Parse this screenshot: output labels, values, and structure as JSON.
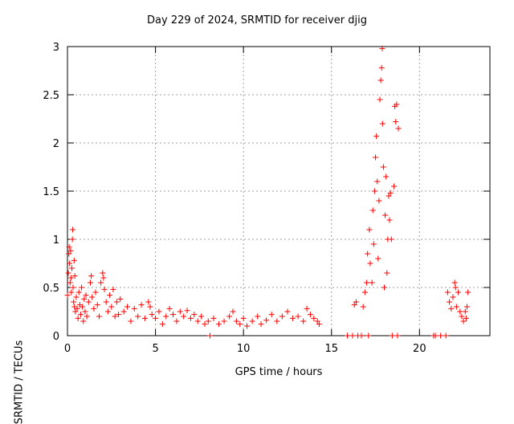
{
  "chart_data": {
    "type": "scatter",
    "title": "Day 229 of 2024, SRMTID for receiver djig",
    "xlabel": "GPS time / hours",
    "ylabel": "SRMTID / TECUs",
    "xlim": [
      0,
      24
    ],
    "ylim": [
      0,
      3
    ],
    "xticks": [
      {
        "value": 0,
        "label": "0"
      },
      {
        "value": 5,
        "label": "5"
      },
      {
        "value": 10,
        "label": "10"
      },
      {
        "value": 15,
        "label": "15"
      },
      {
        "value": 20,
        "label": "20"
      }
    ],
    "yticks": [
      {
        "value": 0,
        "label": "0"
      },
      {
        "value": 0.5,
        "label": "0.5"
      },
      {
        "value": 1,
        "label": "1"
      },
      {
        "value": 1.5,
        "label": "1.5"
      },
      {
        "value": 2,
        "label": "2"
      },
      {
        "value": 2.5,
        "label": "2.5"
      },
      {
        "value": 3,
        "label": "3"
      }
    ],
    "grid": true,
    "marker": "+",
    "color": "#ff0000",
    "series": [
      {
        "name": "SRMTID",
        "points": [
          [
            0.0,
            0.42
          ],
          [
            0.05,
            0.65
          ],
          [
            0.08,
            0.85
          ],
          [
            0.1,
            0.92
          ],
          [
            0.12,
            0.75
          ],
          [
            0.15,
            0.55
          ],
          [
            0.18,
            0.88
          ],
          [
            0.2,
            0.6
          ],
          [
            0.22,
            0.45
          ],
          [
            0.25,
            0.7
          ],
          [
            0.28,
            1.0
          ],
          [
            0.3,
            1.1
          ],
          [
            0.32,
            0.5
          ],
          [
            0.35,
            0.35
          ],
          [
            0.38,
            0.78
          ],
          [
            0.4,
            0.3
          ],
          [
            0.42,
            0.62
          ],
          [
            0.45,
            0.25
          ],
          [
            0.5,
            0.4
          ],
          [
            0.55,
            0.28
          ],
          [
            0.6,
            0.18
          ],
          [
            0.65,
            0.45
          ],
          [
            0.7,
            0.32
          ],
          [
            0.75,
            0.22
          ],
          [
            0.8,
            0.5
          ],
          [
            0.85,
            0.3
          ],
          [
            0.9,
            0.15
          ],
          [
            0.95,
            0.38
          ],
          [
            1.0,
            0.25
          ],
          [
            1.05,
            0.42
          ],
          [
            1.1,
            0.2
          ],
          [
            1.2,
            0.35
          ],
          [
            1.3,
            0.55
          ],
          [
            1.35,
            0.62
          ],
          [
            1.4,
            0.4
          ],
          [
            1.5,
            0.28
          ],
          [
            1.6,
            0.45
          ],
          [
            1.7,
            0.32
          ],
          [
            1.8,
            0.2
          ],
          [
            1.9,
            0.55
          ],
          [
            2.0,
            0.65
          ],
          [
            2.05,
            0.6
          ],
          [
            2.1,
            0.48
          ],
          [
            2.2,
            0.35
          ],
          [
            2.3,
            0.25
          ],
          [
            2.4,
            0.42
          ],
          [
            2.5,
            0.3
          ],
          [
            2.6,
            0.48
          ],
          [
            2.7,
            0.2
          ],
          [
            2.8,
            0.35
          ],
          [
            2.9,
            0.22
          ],
          [
            3.0,
            0.38
          ],
          [
            3.2,
            0.25
          ],
          [
            3.4,
            0.3
          ],
          [
            3.6,
            0.15
          ],
          [
            3.8,
            0.28
          ],
          [
            4.0,
            0.2
          ],
          [
            4.2,
            0.32
          ],
          [
            4.4,
            0.18
          ],
          [
            4.6,
            0.35
          ],
          [
            4.7,
            0.3
          ],
          [
            4.8,
            0.22
          ],
          [
            5.0,
            0.18
          ],
          [
            5.2,
            0.25
          ],
          [
            5.4,
            0.12
          ],
          [
            5.6,
            0.2
          ],
          [
            5.8,
            0.28
          ],
          [
            6.0,
            0.22
          ],
          [
            6.2,
            0.15
          ],
          [
            6.4,
            0.25
          ],
          [
            6.6,
            0.2
          ],
          [
            6.8,
            0.26
          ],
          [
            7.0,
            0.18
          ],
          [
            7.2,
            0.22
          ],
          [
            7.4,
            0.15
          ],
          [
            7.6,
            0.2
          ],
          [
            7.8,
            0.12
          ],
          [
            8.0,
            0.15
          ],
          [
            8.1,
            0.0
          ],
          [
            8.3,
            0.18
          ],
          [
            8.6,
            0.12
          ],
          [
            8.9,
            0.15
          ],
          [
            9.2,
            0.2
          ],
          [
            9.4,
            0.25
          ],
          [
            9.6,
            0.15
          ],
          [
            9.8,
            0.12
          ],
          [
            10.0,
            0.18
          ],
          [
            10.2,
            0.1
          ],
          [
            10.5,
            0.15
          ],
          [
            10.8,
            0.2
          ],
          [
            11.0,
            0.12
          ],
          [
            11.3,
            0.16
          ],
          [
            11.6,
            0.22
          ],
          [
            11.9,
            0.15
          ],
          [
            12.2,
            0.2
          ],
          [
            12.5,
            0.25
          ],
          [
            12.8,
            0.18
          ],
          [
            13.1,
            0.2
          ],
          [
            13.4,
            0.15
          ],
          [
            13.6,
            0.28
          ],
          [
            13.8,
            0.22
          ],
          [
            14.0,
            0.18
          ],
          [
            14.2,
            0.15
          ],
          [
            14.3,
            0.12
          ],
          [
            15.9,
            0.0
          ],
          [
            16.2,
            0.0
          ],
          [
            16.3,
            0.32
          ],
          [
            16.4,
            0.35
          ],
          [
            16.5,
            0.0
          ],
          [
            16.7,
            0.0
          ],
          [
            16.8,
            0.3
          ],
          [
            16.9,
            0.45
          ],
          [
            17.0,
            0.55
          ],
          [
            17.05,
            0.85
          ],
          [
            17.1,
            0.0
          ],
          [
            17.15,
            1.1
          ],
          [
            17.2,
            0.75
          ],
          [
            17.3,
            0.55
          ],
          [
            17.35,
            1.3
          ],
          [
            17.4,
            0.95
          ],
          [
            17.45,
            1.5
          ],
          [
            17.5,
            1.85
          ],
          [
            17.55,
            2.07
          ],
          [
            17.6,
            1.6
          ],
          [
            17.65,
            0.8
          ],
          [
            17.7,
            1.4
          ],
          [
            17.75,
            2.45
          ],
          [
            17.8,
            2.65
          ],
          [
            17.85,
            2.78
          ],
          [
            17.88,
            2.98
          ],
          [
            17.9,
            2.2
          ],
          [
            17.95,
            1.75
          ],
          [
            18.0,
            0.5
          ],
          [
            18.05,
            1.25
          ],
          [
            18.1,
            1.65
          ],
          [
            18.15,
            0.65
          ],
          [
            18.2,
            1.0
          ],
          [
            18.25,
            1.45
          ],
          [
            18.3,
            1.2
          ],
          [
            18.35,
            1.48
          ],
          [
            18.4,
            1.0
          ],
          [
            18.45,
            0.0
          ],
          [
            18.55,
            1.55
          ],
          [
            18.6,
            2.38
          ],
          [
            18.65,
            2.22
          ],
          [
            18.7,
            2.4
          ],
          [
            18.75,
            0.0
          ],
          [
            18.8,
            2.15
          ],
          [
            20.8,
            0.0
          ],
          [
            20.9,
            0.0
          ],
          [
            21.2,
            0.0
          ],
          [
            21.5,
            0.0
          ],
          [
            21.6,
            0.45
          ],
          [
            21.7,
            0.35
          ],
          [
            21.8,
            0.28
          ],
          [
            21.9,
            0.4
          ],
          [
            22.0,
            0.55
          ],
          [
            22.05,
            0.5
          ],
          [
            22.1,
            0.3
          ],
          [
            22.2,
            0.45
          ],
          [
            22.3,
            0.25
          ],
          [
            22.4,
            0.2
          ],
          [
            22.5,
            0.15
          ],
          [
            22.6,
            0.25
          ],
          [
            22.65,
            0.18
          ],
          [
            22.7,
            0.3
          ],
          [
            22.75,
            0.45
          ]
        ]
      }
    ]
  }
}
